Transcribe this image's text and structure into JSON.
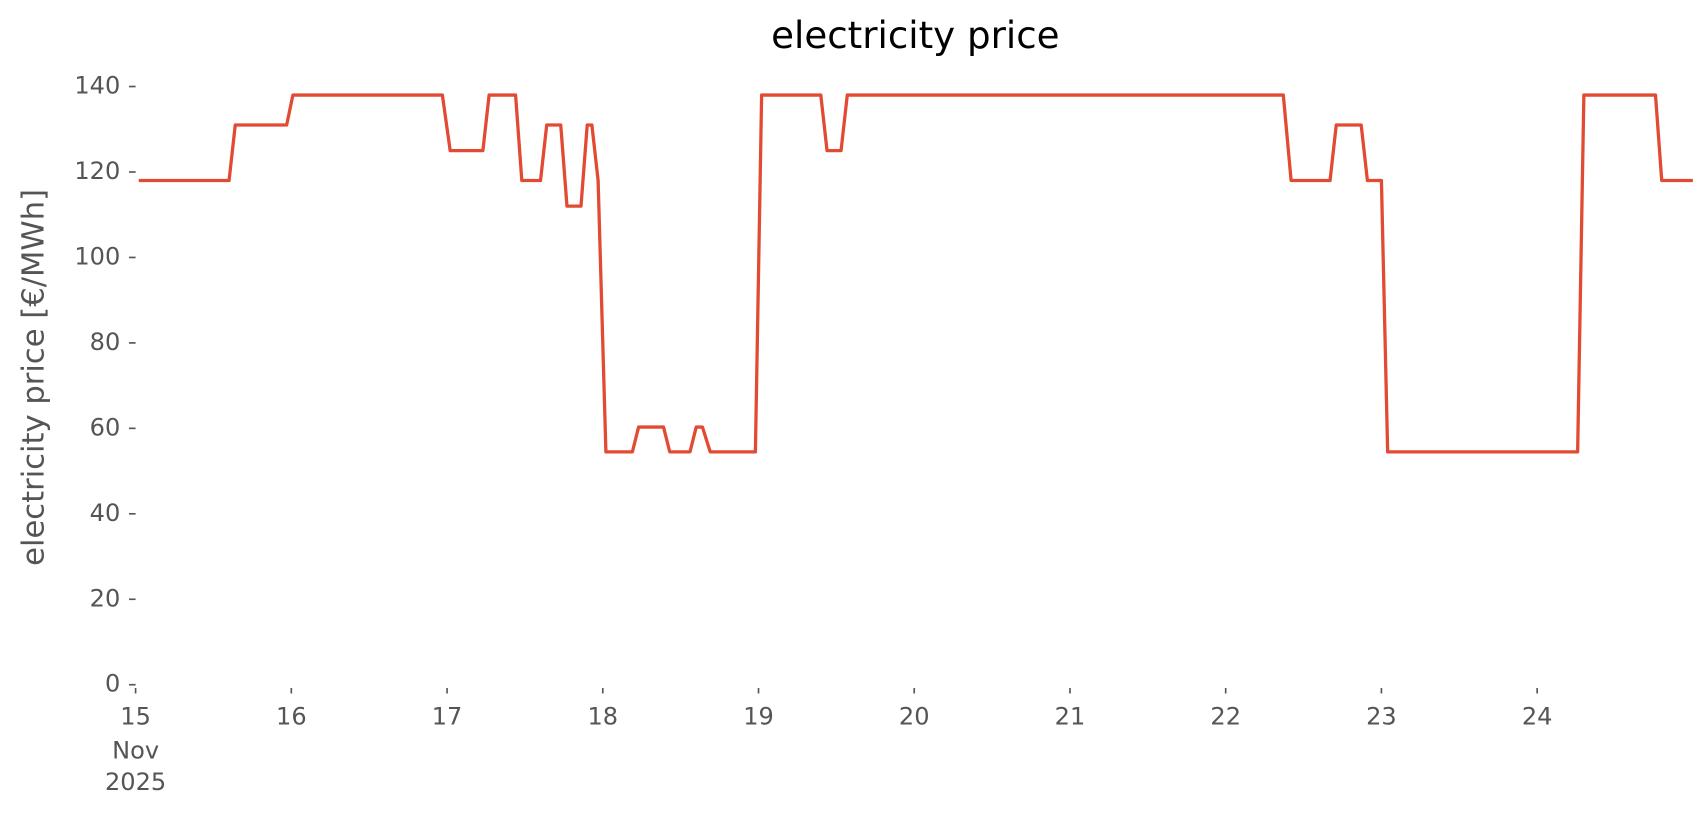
{
  "chart_data": {
    "type": "line",
    "title": "electricity price",
    "y_label": "electricity price [€/MWh]",
    "x_month": "Nov",
    "x_year": "2025",
    "xlim": [
      15,
      25
    ],
    "xticks": [
      15,
      16,
      17,
      18,
      19,
      20,
      21,
      22,
      23,
      24
    ],
    "ylim": [
      0,
      140
    ],
    "yticks": [
      0,
      20,
      40,
      60,
      80,
      100,
      120,
      140
    ],
    "grid": false,
    "series": [
      {
        "name": "electricity price",
        "color": "#e24a33",
        "x": [
          15.02,
          15.6,
          15.64,
          15.97,
          16.01,
          16.97,
          17.02,
          17.23,
          17.27,
          17.44,
          17.48,
          17.6,
          17.64,
          17.73,
          17.77,
          17.86,
          17.9,
          17.93,
          17.97,
          18.02,
          18.19,
          18.23,
          18.39,
          18.43,
          18.56,
          18.6,
          18.64,
          18.69,
          18.98,
          19.02,
          19.4,
          19.44,
          19.53,
          19.57,
          22.37,
          22.42,
          22.67,
          22.71,
          22.87,
          22.91,
          23.0,
          23.04,
          24.26,
          24.3,
          24.76,
          24.8,
          25.0
        ],
        "values": [
          118,
          118,
          131,
          131,
          138,
          138,
          125,
          125,
          138,
          138,
          118,
          118,
          131,
          131,
          112,
          112,
          131,
          131,
          118,
          54.5,
          54.5,
          60.3,
          60.3,
          54.5,
          54.5,
          60.3,
          60.3,
          54.5,
          54.5,
          138,
          138,
          125,
          125,
          138,
          138,
          118,
          118,
          131,
          131,
          118,
          118,
          54.5,
          54.5,
          138,
          138,
          118,
          118
        ]
      }
    ]
  }
}
